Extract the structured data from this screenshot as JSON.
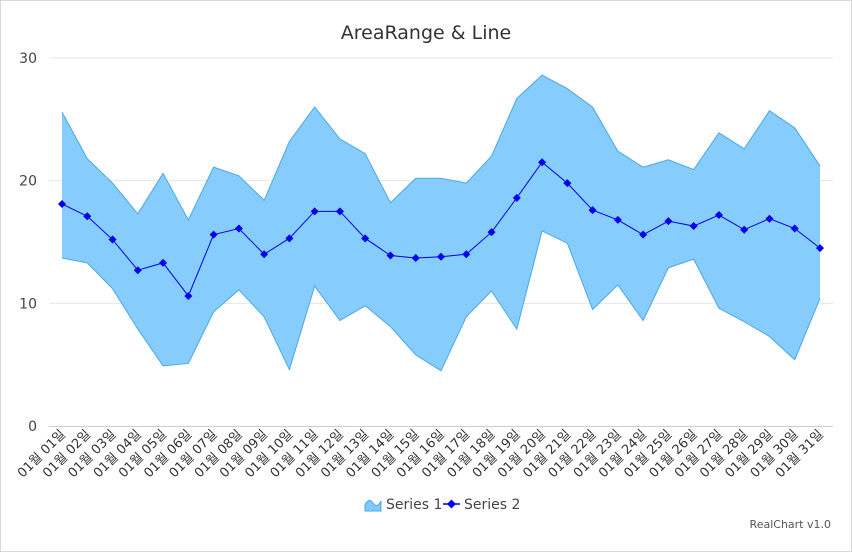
{
  "chart_data": {
    "type": "area",
    "title": "AreaRange & Line",
    "xlabel": "",
    "ylabel": "",
    "ylim": [
      0,
      30
    ],
    "yticks": [
      0,
      10,
      20,
      30
    ],
    "grid": true,
    "legend_position": "bottom",
    "categories": [
      "01월 01일",
      "01월 02일",
      "01월 03일",
      "01월 04일",
      "01월 05일",
      "01월 06일",
      "01월 07일",
      "01월 08일",
      "01월 09일",
      "01월 10일",
      "01월 11일",
      "01월 12일",
      "01월 13일",
      "01월 14일",
      "01월 15일",
      "01월 16일",
      "01월 17일",
      "01월 18일",
      "01월 19일",
      "01월 20일",
      "01월 21일",
      "01월 22일",
      "01월 23일",
      "01월 24일",
      "01월 25일",
      "01월 26일",
      "01월 27일",
      "01월 28일",
      "01월 29일",
      "01월 30일",
      "01월 31일"
    ],
    "series": [
      {
        "name": "Series 1",
        "type": "arearange",
        "color": "#80c9fc",
        "stroke": "#4aa8e8",
        "low": [
          13.7,
          13.3,
          11.2,
          7.9,
          4.9,
          5.1,
          9.3,
          11.1,
          8.9,
          4.6,
          11.4,
          8.6,
          9.8,
          8.1,
          5.8,
          4.5,
          8.9,
          11.0,
          7.9,
          15.9,
          14.9,
          9.5,
          11.5,
          8.6,
          12.9,
          13.6,
          9.6,
          8.5,
          7.3,
          5.4,
          10.4
        ],
        "high": [
          25.6,
          21.8,
          19.8,
          17.3,
          20.6,
          16.8,
          21.1,
          20.4,
          18.4,
          23.2,
          26.0,
          23.4,
          22.2,
          18.2,
          20.2,
          20.2,
          19.8,
          22.0,
          26.7,
          28.6,
          27.5,
          26.0,
          22.4,
          21.1,
          21.7,
          20.9,
          23.9,
          22.6,
          25.7,
          24.3,
          21.2
        ]
      },
      {
        "name": "Series 2",
        "type": "line",
        "color": "#0000ee",
        "values": [
          18.1,
          17.1,
          15.2,
          12.7,
          13.3,
          10.6,
          15.6,
          16.1,
          14.0,
          15.3,
          17.5,
          17.5,
          15.3,
          13.9,
          13.7,
          13.8,
          14.0,
          15.8,
          18.6,
          21.5,
          19.8,
          17.6,
          16.8,
          15.6,
          16.7,
          16.3,
          17.2,
          16.0,
          16.9,
          16.1,
          14.5
        ]
      }
    ]
  },
  "credit": "RealChart v1.0"
}
